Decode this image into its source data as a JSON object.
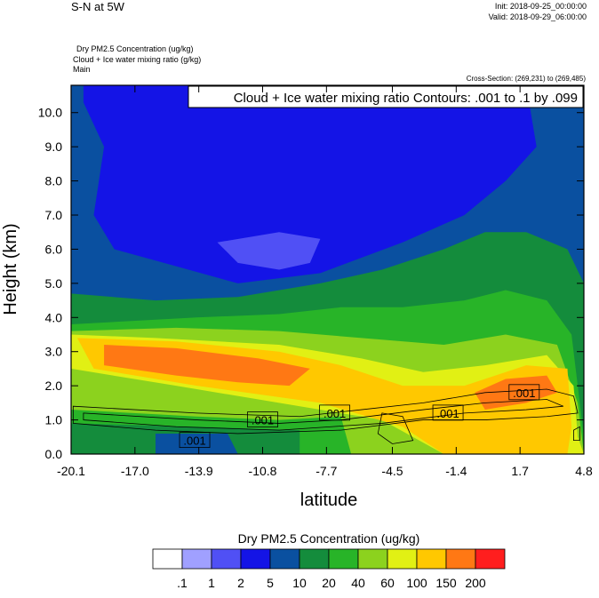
{
  "chart_data": {
    "type": "contour",
    "title": "S-N at 5W",
    "init": "Init: 2018-09-25_00:00:00",
    "valid": "Valid: 2018-09-29_06:00:00",
    "fields": [
      "Dry PM2.5 Concentration   (ug/kg)",
      "Cloud + Ice water mixing ratio   (g/kg)",
      "Main"
    ],
    "cross_section": "Cross-Section: (269,231) to (269,485)",
    "contour_info": "Cloud + Ice water mixing ratio Contours: .001 to .1 by .099",
    "x_label": "latitude",
    "y_label": "Height (km)",
    "xlim": [
      -20.1,
      4.8
    ],
    "ylim": [
      0,
      10.8
    ],
    "xticks": [
      -20.1,
      {
        "value": -17,
        "label": "-17.0"
      },
      -13.9,
      -10.8,
      -7.7,
      -4.5,
      -1.4,
      1.7,
      4.8
    ],
    "yticks": [
      {
        "value": 0,
        "label": "0.0"
      },
      {
        "value": 1,
        "label": "1.0"
      },
      {
        "value": 2,
        "label": "2.0"
      },
      {
        "value": 3,
        "label": "3.0"
      },
      {
        "value": 4,
        "label": "4.0"
      },
      {
        "value": 5,
        "label": "5.0"
      },
      {
        "value": 6,
        "label": "6.0"
      },
      {
        "value": 7,
        "label": "7.0"
      },
      {
        "value": 8,
        "label": "8.0"
      },
      {
        "value": 9,
        "label": "9.0"
      },
      {
        "value": 10,
        "label": "10.0"
      }
    ],
    "colorbar_title": "Dry PM2.5 Concentration  (ug/kg)",
    "levels": [
      {
        "value": 0.1,
        "label": ".1"
      },
      1,
      2,
      5,
      10,
      20,
      40,
      60,
      100,
      150,
      200
    ],
    "colors": [
      "#ffffff",
      "#a0a0ff",
      "#5050f5",
      "#1414e6",
      "#0a50a0",
      "#148c3c",
      "#28b428",
      "#8cd21e",
      "#e1f014",
      "#ffc800",
      "#ff7814",
      "#ff1e1e"
    ],
    "fill_regions": [
      {
        "level": 4,
        "points": [
          [
            -20.1,
            10.8
          ],
          [
            4.8,
            10.8
          ],
          [
            4.8,
            0
          ],
          [
            -20.1,
            0
          ]
        ]
      },
      {
        "level": 3,
        "points": [
          [
            -19.5,
            10.8
          ],
          [
            2,
            10.8
          ],
          [
            2.5,
            9
          ],
          [
            1,
            8
          ],
          [
            -1,
            7
          ],
          [
            -4,
            6.2
          ],
          [
            -8,
            5.3
          ],
          [
            -12,
            5
          ],
          [
            -15,
            5.5
          ],
          [
            -18,
            6
          ],
          [
            -19,
            7
          ],
          [
            -18.5,
            9
          ],
          [
            -19.5,
            10.3
          ]
        ]
      },
      {
        "level": 2,
        "points": [
          [
            -13,
            6.2
          ],
          [
            -10,
            6.5
          ],
          [
            -8,
            6.3
          ],
          [
            -8.5,
            5.6
          ],
          [
            -10,
            5.4
          ],
          [
            -12,
            5.6
          ]
        ]
      },
      {
        "level": 5,
        "points": [
          [
            -20.1,
            4.7
          ],
          [
            -16,
            4.5
          ],
          [
            -12,
            4.6
          ],
          [
            -8,
            5
          ],
          [
            -5,
            5.4
          ],
          [
            -2,
            6
          ],
          [
            0,
            6.5
          ],
          [
            2,
            6.5
          ],
          [
            4,
            6
          ],
          [
            4.8,
            5
          ],
          [
            4.8,
            0
          ],
          [
            -20.1,
            0
          ]
        ]
      },
      {
        "level": 6,
        "points": [
          [
            -20.1,
            3.8
          ],
          [
            -14,
            4
          ],
          [
            -10,
            4.1
          ],
          [
            -7,
            4.3
          ],
          [
            -4,
            4.3
          ],
          [
            -1,
            4.5
          ],
          [
            1,
            4.8
          ],
          [
            3,
            4.5
          ],
          [
            4.2,
            3.5
          ],
          [
            4.5,
            2
          ],
          [
            4.8,
            0.5
          ],
          [
            4.8,
            0
          ],
          [
            -20.1,
            0
          ]
        ]
      },
      {
        "level": 7,
        "points": [
          [
            -20.1,
            3.6
          ],
          [
            -15,
            3.7
          ],
          [
            -10,
            3.6
          ],
          [
            -6,
            3.4
          ],
          [
            -2,
            3.2
          ],
          [
            1,
            3.5
          ],
          [
            3.5,
            3.2
          ],
          [
            4.5,
            1.5
          ],
          [
            4.8,
            0
          ],
          [
            -20.1,
            0
          ]
        ]
      },
      {
        "level": 8,
        "points": [
          [
            -20.1,
            3.5
          ],
          [
            -16,
            3.4
          ],
          [
            -10,
            3.2
          ],
          [
            -6,
            2.8
          ],
          [
            -3,
            2.4
          ],
          [
            0,
            2.6
          ],
          [
            3,
            2.9
          ],
          [
            4.3,
            2
          ],
          [
            4.5,
            0.5
          ],
          [
            4.8,
            0
          ],
          [
            -2,
            0
          ],
          [
            -5,
            1
          ],
          [
            -10,
            1.5
          ],
          [
            -15,
            2
          ],
          [
            -20.1,
            2.5
          ]
        ]
      },
      {
        "level": 9,
        "points": [
          [
            -19.8,
            3.4
          ],
          [
            -15,
            3.3
          ],
          [
            -10,
            3
          ],
          [
            -7,
            2.6
          ],
          [
            -4,
            2
          ],
          [
            -1,
            2
          ],
          [
            2,
            2.6
          ],
          [
            4,
            2.5
          ],
          [
            4.2,
            0.8
          ],
          [
            4,
            0
          ],
          [
            -2,
            0
          ],
          [
            -4,
            0.8
          ],
          [
            -8,
            1.5
          ],
          [
            -14,
            2
          ],
          [
            -19,
            2.5
          ]
        ]
      },
      {
        "level": 10,
        "points": [
          [
            -18.5,
            3.2
          ],
          [
            -15,
            3.1
          ],
          [
            -11,
            2.8
          ],
          [
            -8.5,
            2.5
          ],
          [
            -9.5,
            2
          ],
          [
            -12,
            2.1
          ],
          [
            -15,
            2.3
          ],
          [
            -18.5,
            2.6
          ]
        ]
      },
      {
        "level": 10,
        "points": [
          [
            -0.5,
            1.8
          ],
          [
            1,
            2.2
          ],
          [
            3,
            2.3
          ],
          [
            3.5,
            1.8
          ],
          [
            2,
            1.5
          ],
          [
            0,
            1.3
          ]
        ]
      },
      {
        "level": 6,
        "points": [
          [
            -20.1,
            1.3
          ],
          [
            -14,
            1.1
          ],
          [
            -10,
            1
          ],
          [
            -7,
            1.1
          ],
          [
            -6.5,
            0
          ],
          [
            -20.1,
            0
          ]
        ]
      },
      {
        "level": 5,
        "points": [
          [
            -20.1,
            0.9
          ],
          [
            -14,
            0.8
          ],
          [
            -9,
            0.7
          ],
          [
            -9,
            0
          ],
          [
            -20.1,
            0
          ]
        ]
      },
      {
        "level": 4,
        "points": [
          [
            -16,
            0.6
          ],
          [
            -12.5,
            0.6
          ],
          [
            -12,
            0
          ],
          [
            -16,
            0
          ]
        ]
      }
    ],
    "contour_lines": [
      {
        "points": [
          [
            -20,
            1.4
          ],
          [
            -14,
            1.2
          ],
          [
            -9,
            1.1
          ],
          [
            -6,
            1.3
          ],
          [
            -3,
            1.5
          ],
          [
            0,
            1.8
          ],
          [
            3,
            1.9
          ],
          [
            4.3,
            1.7
          ],
          [
            4.5,
            1.2
          ],
          [
            3,
            1.1
          ],
          [
            0,
            1.0
          ],
          [
            -3,
            1.0
          ],
          [
            -7,
            0.7
          ],
          [
            -12,
            0.6
          ],
          [
            -16,
            0.7
          ],
          [
            -20,
            0.9
          ]
        ]
      },
      {
        "points": [
          [
            -19.5,
            1.2
          ],
          [
            -14,
            1.0
          ],
          [
            -10,
            0.9
          ],
          [
            -7,
            1.0
          ],
          [
            -3,
            1.3
          ],
          [
            0,
            1.5
          ],
          [
            3,
            1.6
          ],
          [
            3.8,
            1.4
          ],
          [
            2,
            1.3
          ],
          [
            -1,
            1.2
          ],
          [
            -5,
            0.9
          ],
          [
            -10,
            0.7
          ],
          [
            -15,
            0.8
          ],
          [
            -19.5,
            1.0
          ]
        ]
      },
      {
        "points": [
          [
            -5,
            1.2
          ],
          [
            -4,
            1.1
          ],
          [
            -3.5,
            0.4
          ],
          [
            -4.5,
            0.3
          ],
          [
            -5.2,
            0.6
          ]
        ]
      },
      {
        "points": [
          [
            4.3,
            0.7
          ],
          [
            4.6,
            0.8
          ],
          [
            4.6,
            0.4
          ],
          [
            4.3,
            0.4
          ]
        ]
      }
    ],
    "contour_labels": [
      {
        "label": ".001",
        "lat": -14.1,
        "height": 0.4
      },
      {
        "label": ".001",
        "lat": -10.8,
        "height": 1.0
      },
      {
        "label": ".001",
        "lat": -7.3,
        "height": 1.2
      },
      {
        "label": ".001",
        "lat": -1.8,
        "height": 1.2
      },
      {
        "label": ".001",
        "lat": 1.9,
        "height": 1.8
      }
    ]
  }
}
